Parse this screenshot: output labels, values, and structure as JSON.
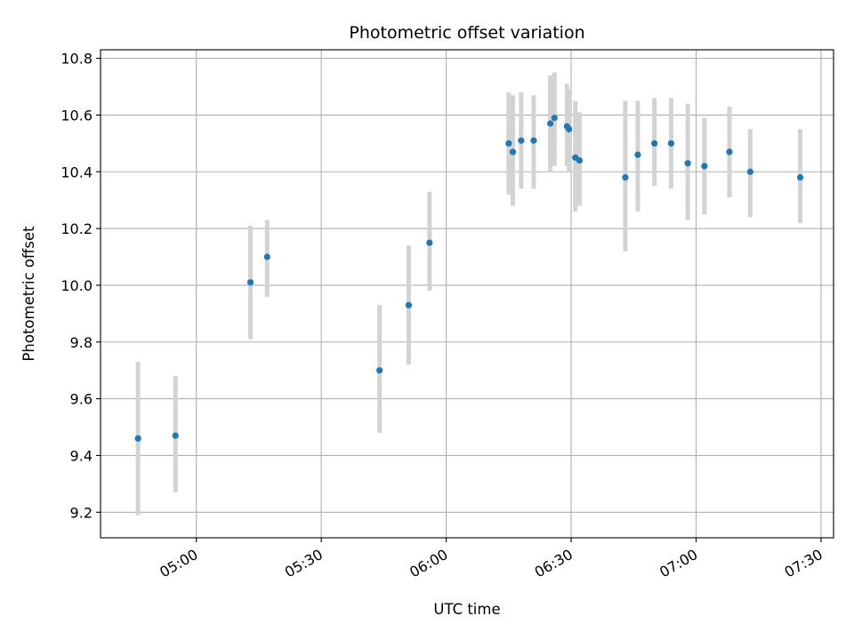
{
  "chart_data": {
    "type": "scatter",
    "title": "Photometric offset variation",
    "xlabel": "UTC time",
    "ylabel": "Photometric offset",
    "x_is_time": true,
    "xlim": [
      "04:37",
      "07:33"
    ],
    "ylim": [
      9.11,
      10.83
    ],
    "x_ticks": [
      "05:00",
      "05:30",
      "06:00",
      "06:30",
      "07:00",
      "07:30"
    ],
    "y_ticks": [
      "9.2",
      "9.4",
      "9.6",
      "9.8",
      "10.0",
      "10.2",
      "10.4",
      "10.6",
      "10.8"
    ],
    "grid": true,
    "x_tick_rotation": 30,
    "colors": {
      "marker": "#1f77b4",
      "errorbar": "#d3d3d3",
      "grid": "#b0b0b0"
    },
    "series": [
      {
        "marker": "circle",
        "points": [
          {
            "x": "04:46",
            "y": 9.46,
            "ylow": 9.19,
            "yhigh": 9.73
          },
          {
            "x": "04:55",
            "y": 9.47,
            "ylow": 9.27,
            "yhigh": 9.68
          },
          {
            "x": "05:13",
            "y": 10.01,
            "ylow": 9.81,
            "yhigh": 10.21
          },
          {
            "x": "05:17",
            "y": 10.1,
            "ylow": 9.96,
            "yhigh": 10.23
          },
          {
            "x": "05:44",
            "y": 9.7,
            "ylow": 9.48,
            "yhigh": 9.93
          },
          {
            "x": "05:51",
            "y": 9.93,
            "ylow": 9.72,
            "yhigh": 10.14
          },
          {
            "x": "05:56",
            "y": 10.15,
            "ylow": 9.98,
            "yhigh": 10.33
          },
          {
            "x": "06:15",
            "y": 10.5,
            "ylow": 10.32,
            "yhigh": 10.68
          },
          {
            "x": "06:16",
            "y": 10.47,
            "ylow": 10.28,
            "yhigh": 10.67
          },
          {
            "x": "06:18",
            "y": 10.51,
            "ylow": 10.34,
            "yhigh": 10.68
          },
          {
            "x": "06:21",
            "y": 10.51,
            "ylow": 10.34,
            "yhigh": 10.67
          },
          {
            "x": "06:25",
            "y": 10.57,
            "ylow": 10.4,
            "yhigh": 10.74
          },
          {
            "x": "06:26",
            "y": 10.59,
            "ylow": 10.42,
            "yhigh": 10.75
          },
          {
            "x": "06:29",
            "y": 10.56,
            "ylow": 10.42,
            "yhigh": 10.71
          },
          {
            "x": "06:29:30",
            "y": 10.55,
            "ylow": 10.4,
            "yhigh": 10.69
          },
          {
            "x": "06:31",
            "y": 10.45,
            "ylow": 10.26,
            "yhigh": 10.65
          },
          {
            "x": "06:32",
            "y": 10.44,
            "ylow": 10.28,
            "yhigh": 10.61
          },
          {
            "x": "06:43",
            "y": 10.38,
            "ylow": 10.12,
            "yhigh": 10.65
          },
          {
            "x": "06:46",
            "y": 10.46,
            "ylow": 10.26,
            "yhigh": 10.65
          },
          {
            "x": "06:50",
            "y": 10.5,
            "ylow": 10.35,
            "yhigh": 10.66
          },
          {
            "x": "06:54",
            "y": 10.5,
            "ylow": 10.34,
            "yhigh": 10.66
          },
          {
            "x": "06:58",
            "y": 10.43,
            "ylow": 10.23,
            "yhigh": 10.64
          },
          {
            "x": "07:02",
            "y": 10.42,
            "ylow": 10.25,
            "yhigh": 10.59
          },
          {
            "x": "07:08",
            "y": 10.47,
            "ylow": 10.31,
            "yhigh": 10.63
          },
          {
            "x": "07:13",
            "y": 10.4,
            "ylow": 10.24,
            "yhigh": 10.55
          },
          {
            "x": "07:25",
            "y": 10.38,
            "ylow": 10.22,
            "yhigh": 10.55
          }
        ]
      }
    ]
  }
}
